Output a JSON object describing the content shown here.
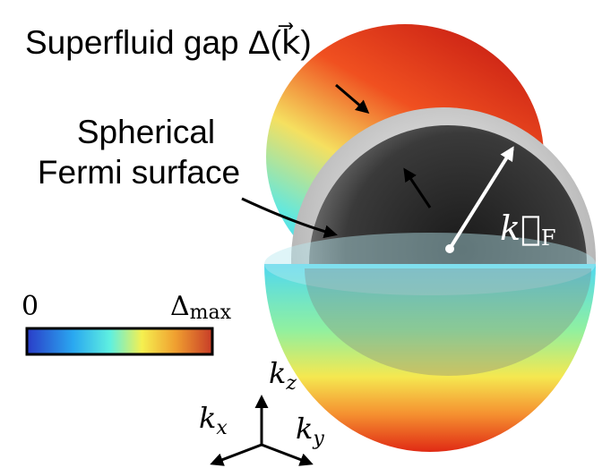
{
  "labels": {
    "gap": "Superfluid gap Δ(k⃗)",
    "fermi_line1": "Spherical",
    "fermi_line2": "Fermi surface",
    "kf": "k⃗",
    "kf_sub": "F"
  },
  "colorbar": {
    "min": "0",
    "max": "Δ",
    "max_sub": "max"
  },
  "axes": {
    "kz": "k",
    "kz_sub": "z",
    "kx": "k",
    "kx_sub": "x",
    "ky": "k",
    "ky_sub": "y"
  }
}
